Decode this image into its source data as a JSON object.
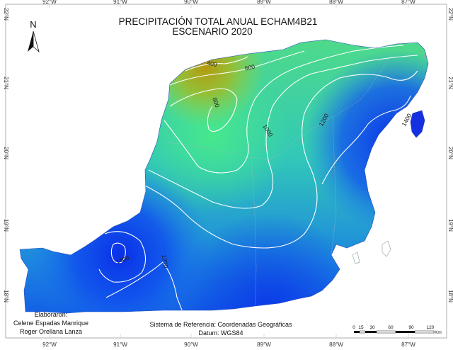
{
  "title": {
    "line1": "PRECIPITACIÓN TOTAL  ANUAL ECHAM4B21",
    "line2": "ESCENARIO 2020"
  },
  "north_arrow": {
    "label": "N",
    "icon": "north-arrow-icon"
  },
  "axes": {
    "longitude_ticks": [
      "92°W",
      "91°W",
      "90°W",
      "89°W",
      "88°W",
      "87°W"
    ],
    "latitude_ticks": [
      "22°N",
      "21°N",
      "20°N",
      "19°N",
      "18°N"
    ]
  },
  "contours": [
    {
      "value": "400"
    },
    {
      "value": "600"
    },
    {
      "value": "800"
    },
    {
      "value": "1000"
    },
    {
      "value": "1200"
    },
    {
      "value": "1400"
    },
    {
      "value": "1400"
    },
    {
      "value": "1200"
    }
  ],
  "credits": {
    "heading": "Elaboraron:",
    "author1": "Celene Espadas Manrique",
    "author2": "Roger Orellana Lanza"
  },
  "reference": {
    "system": "Sistema de Referencia: Coordenadas Geográficas",
    "datum": "Datum: WGS84"
  },
  "scale_bar": {
    "labels": [
      "0",
      "15",
      "30",
      "60",
      "90",
      "120"
    ],
    "unit": "Km"
  },
  "colors": {
    "dry": "#b8a414",
    "mid": "#3fe49a",
    "wet": "#0b36e6",
    "island": "#1530e0"
  }
}
